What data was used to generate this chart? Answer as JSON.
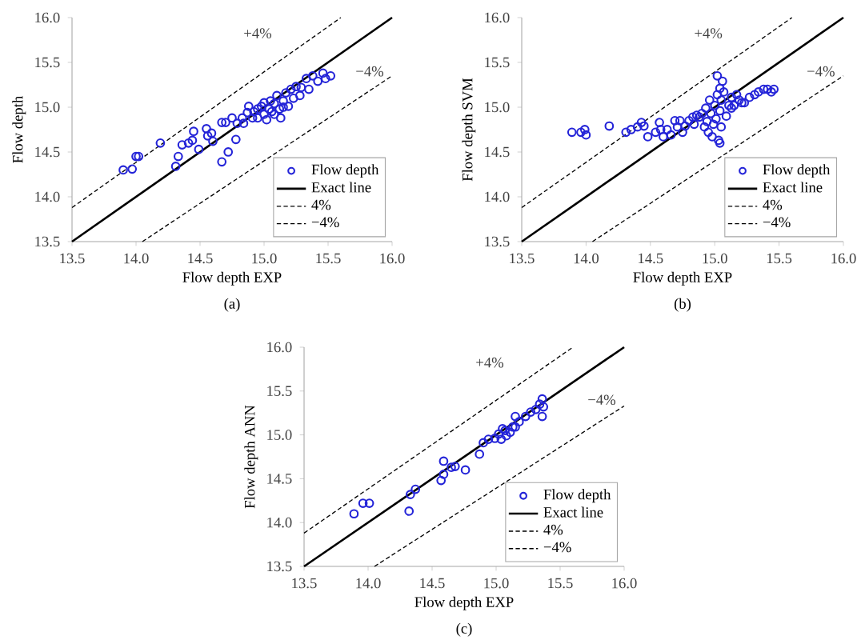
{
  "chart_data": [
    {
      "type": "scatter",
      "xlabel": "Flow depth EXP",
      "ylabel": "Flow depth",
      "xlim": [
        13.5,
        16.0
      ],
      "ylim": [
        13.5,
        16.0
      ],
      "xticks": [
        {
          "value": 13.5,
          "label": "13.5"
        },
        {
          "value": 14.0,
          "label": "14.0"
        },
        {
          "value": 14.5,
          "label": "14.5"
        },
        {
          "value": 15.0,
          "label": "15.0"
        },
        {
          "value": 15.5,
          "label": "15.5"
        },
        {
          "value": 16.0,
          "label": "16.0"
        }
      ],
      "yticks": [
        {
          "value": 13.5,
          "label": "13.5"
        },
        {
          "value": 14.0,
          "label": "14.0"
        },
        {
          "value": 14.5,
          "label": "14.5"
        },
        {
          "value": 15.0,
          "label": "15.0"
        },
        {
          "value": 15.5,
          "label": "15.5"
        },
        {
          "value": 16.0,
          "label": "16.0"
        }
      ],
      "legend": "bottom right",
      "series": [
        {
          "name": "Flow depth",
          "marker": "circle",
          "color": "#2424d8",
          "x": [
            13.9,
            13.97,
            14.0,
            14.02,
            14.19,
            14.31,
            14.33,
            14.36,
            14.41,
            14.45,
            14.44,
            14.49,
            14.55,
            14.56,
            14.6,
            14.59,
            14.67,
            14.67,
            14.72,
            14.7,
            14.75,
            14.78,
            14.79,
            14.83,
            14.84,
            14.87,
            14.88,
            14.91,
            14.92,
            14.95,
            14.98,
            15.0,
            15.02,
            15.04,
            15.05,
            15.08,
            15.08,
            15.1,
            15.12,
            15.13,
            15.15,
            15.17,
            15.19,
            15.21,
            15.23,
            15.25,
            15.29,
            15.33,
            15.38,
            15.42,
            15.46,
            15.48,
            15.52,
            15.28,
            15.35,
            15.0,
            14.95,
            15.06,
            15.15
          ],
          "values": [
            14.3,
            14.31,
            14.45,
            14.45,
            14.6,
            14.34,
            14.45,
            14.58,
            14.6,
            14.73,
            14.63,
            14.53,
            14.76,
            14.68,
            14.62,
            14.71,
            14.39,
            14.83,
            14.5,
            14.83,
            14.88,
            14.64,
            14.82,
            14.88,
            14.82,
            14.94,
            15.01,
            14.88,
            14.95,
            14.88,
            15.01,
            14.92,
            14.86,
            14.98,
            15.07,
            14.92,
            15.04,
            15.13,
            14.98,
            14.88,
            15.07,
            15.16,
            15.01,
            15.2,
            15.1,
            15.23,
            15.22,
            15.32,
            15.35,
            15.29,
            15.38,
            15.32,
            15.35,
            15.13,
            15.2,
            15.05,
            14.98,
            14.95,
            15.0
          ]
        },
        {
          "name": "Exact line",
          "type": "line",
          "marker": "none",
          "line_style": "solid",
          "color": "#000000",
          "x": [
            13.5,
            16.0
          ],
          "values": [
            13.5,
            16.0
          ]
        },
        {
          "name": "4%",
          "type": "line",
          "marker": "none",
          "line_style": "dashed",
          "color": "#000000",
          "x": [
            13.5,
            15.6
          ],
          "values": [
            13.88,
            16.0
          ]
        },
        {
          "name": "−4%",
          "type": "line",
          "marker": "none",
          "line_style": "dashed",
          "color": "#000000",
          "x": [
            14.05,
            16.0
          ],
          "values": [
            13.5,
            15.35
          ]
        }
      ],
      "annotations": [
        "+4%",
        "−4%",
        "(a)"
      ]
    },
    {
      "type": "scatter",
      "xlabel": "Flow depth EXP",
      "ylabel": "Flow depth SVM",
      "xlim": [
        13.5,
        16.0
      ],
      "ylim": [
        13.5,
        16.0
      ],
      "xticks": [
        {
          "value": 13.5,
          "label": "13.5"
        },
        {
          "value": 14.0,
          "label": "14.0"
        },
        {
          "value": 14.5,
          "label": "14.5"
        },
        {
          "value": 15.0,
          "label": "15.0"
        },
        {
          "value": 15.5,
          "label": "15.5"
        },
        {
          "value": 16.0,
          "label": "16.0"
        }
      ],
      "yticks": [
        {
          "value": 13.5,
          "label": "13.5"
        },
        {
          "value": 14.0,
          "label": "14.0"
        },
        {
          "value": 14.5,
          "label": "14.5"
        },
        {
          "value": 15.0,
          "label": "15.0"
        },
        {
          "value": 15.5,
          "label": "15.5"
        },
        {
          "value": 16.0,
          "label": "16.0"
        }
      ],
      "legend": "bottom right",
      "series": [
        {
          "name": "Flow depth",
          "marker": "circle",
          "color": "#2424d8",
          "x": [
            13.89,
            13.96,
            13.99,
            14.0,
            14.18,
            14.31,
            14.35,
            14.4,
            14.43,
            14.45,
            14.48,
            14.54,
            14.57,
            14.58,
            14.6,
            14.63,
            14.66,
            14.69,
            14.71,
            14.73,
            14.75,
            14.77,
            14.8,
            14.83,
            14.84,
            14.86,
            14.88,
            14.9,
            14.92,
            14.93,
            14.94,
            14.95,
            14.96,
            14.97,
            14.98,
            14.99,
            15.0,
            15.01,
            15.02,
            15.02,
            15.03,
            15.04,
            15.04,
            15.04,
            15.05,
            15.05,
            15.06,
            15.07,
            15.09,
            15.11,
            15.13,
            15.15,
            15.17,
            15.19,
            15.23,
            15.27,
            15.31,
            15.34,
            15.38,
            15.41,
            15.44,
            15.46,
            15.13,
            15.21
          ],
          "values": [
            14.72,
            14.72,
            14.75,
            14.69,
            14.79,
            14.72,
            14.75,
            14.78,
            14.83,
            14.79,
            14.67,
            14.72,
            14.83,
            14.75,
            14.67,
            14.75,
            14.69,
            14.85,
            14.78,
            14.85,
            14.72,
            14.79,
            14.85,
            14.89,
            14.81,
            14.91,
            14.89,
            14.93,
            14.78,
            14.99,
            14.84,
            14.72,
            15.08,
            14.93,
            14.67,
            14.81,
            15.02,
            14.87,
            15.14,
            15.35,
            14.63,
            15.21,
            14.6,
            14.96,
            15.08,
            14.78,
            15.29,
            15.17,
            14.9,
            15.02,
            15.11,
            15.02,
            15.14,
            15.08,
            15.05,
            15.11,
            15.14,
            15.17,
            15.2,
            15.2,
            15.17,
            15.2,
            14.99,
            15.05
          ]
        },
        {
          "name": "Exact line",
          "type": "line",
          "marker": "none",
          "line_style": "solid",
          "color": "#000000",
          "x": [
            13.5,
            16.0
          ],
          "values": [
            13.5,
            16.0
          ]
        },
        {
          "name": "4%",
          "type": "line",
          "marker": "none",
          "line_style": "dashed",
          "color": "#000000",
          "x": [
            13.5,
            15.6
          ],
          "values": [
            13.88,
            16.0
          ]
        },
        {
          "name": "−4%",
          "type": "line",
          "marker": "none",
          "line_style": "dashed",
          "color": "#000000",
          "x": [
            14.05,
            16.0
          ],
          "values": [
            13.5,
            15.35
          ]
        }
      ],
      "annotations": [
        "+4%",
        "−4%",
        "(b)"
      ]
    },
    {
      "type": "scatter",
      "xlabel": "Flow depth EXP",
      "ylabel": "Flow depth ANN",
      "xlim": [
        13.5,
        16.0
      ],
      "ylim": [
        13.5,
        16.0
      ],
      "xticks": [
        {
          "value": 13.5,
          "label": "13.5"
        },
        {
          "value": 14.0,
          "label": "14.0"
        },
        {
          "value": 14.5,
          "label": "14.5"
        },
        {
          "value": 15.0,
          "label": "15.0"
        },
        {
          "value": 15.5,
          "label": "15.5"
        },
        {
          "value": 16.0,
          "label": "16.0"
        }
      ],
      "yticks": [
        {
          "value": 13.5,
          "label": "13.5"
        },
        {
          "value": 14.0,
          "label": "14.0"
        },
        {
          "value": 14.5,
          "label": "14.5"
        },
        {
          "value": 15.0,
          "label": "15.0"
        },
        {
          "value": 15.5,
          "label": "15.5"
        },
        {
          "value": 16.0,
          "label": "16.0"
        }
      ],
      "legend": "bottom right",
      "series": [
        {
          "name": "Flow depth",
          "marker": "circle",
          "color": "#2424d8",
          "x": [
            13.89,
            13.96,
            14.01,
            14.32,
            14.33,
            14.37,
            14.57,
            14.59,
            14.59,
            14.65,
            14.68,
            14.76,
            14.87,
            14.9,
            14.94,
            14.99,
            15.02,
            15.04,
            15.05,
            15.07,
            15.08,
            15.11,
            15.13,
            15.15,
            15.15,
            15.18,
            15.23,
            15.27,
            15.31,
            15.34,
            15.36,
            15.36,
            15.37
          ],
          "values": [
            14.1,
            14.22,
            14.22,
            14.13,
            14.32,
            14.38,
            14.48,
            14.55,
            14.7,
            14.63,
            14.64,
            14.6,
            14.78,
            14.91,
            14.95,
            14.96,
            15.01,
            14.95,
            15.07,
            15.05,
            14.99,
            15.03,
            15.09,
            15.21,
            15.09,
            15.15,
            15.21,
            15.26,
            15.29,
            15.35,
            15.41,
            15.21,
            15.32
          ]
        },
        {
          "name": "Exact line",
          "type": "line",
          "marker": "none",
          "line_style": "solid",
          "color": "#000000",
          "x": [
            13.5,
            16.0
          ],
          "values": [
            13.5,
            16.0
          ]
        },
        {
          "name": "4%",
          "type": "line",
          "marker": "none",
          "line_style": "dashed",
          "color": "#000000",
          "x": [
            13.5,
            15.6
          ],
          "values": [
            13.88,
            16.0
          ]
        },
        {
          "name": "−4%",
          "type": "line",
          "marker": "none",
          "line_style": "dashed",
          "color": "#000000",
          "x": [
            14.05,
            16.0
          ],
          "values": [
            13.5,
            15.33
          ]
        }
      ],
      "annotations": [
        "+4%",
        "−4%",
        "(c)"
      ]
    }
  ]
}
